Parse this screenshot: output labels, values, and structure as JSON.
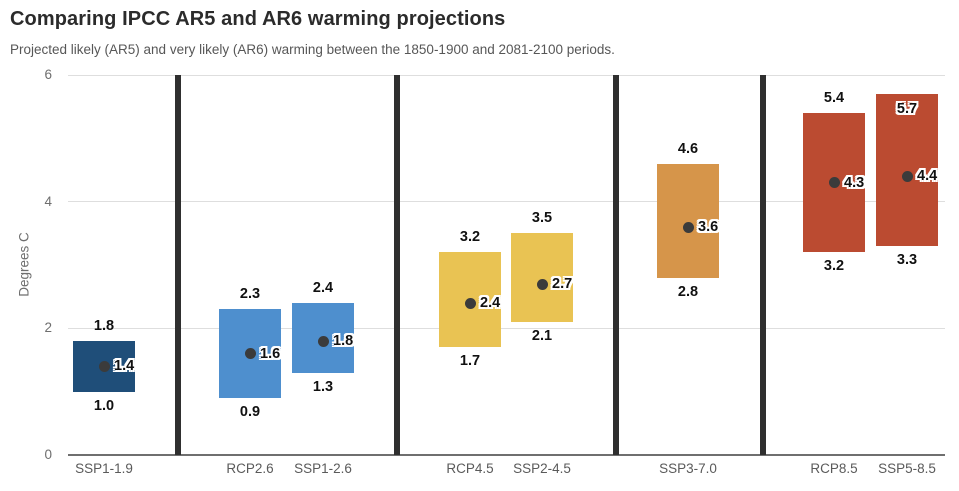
{
  "chart_data": {
    "type": "bar",
    "variant": "floating-range-bars-with-midpoint-dots",
    "title": "Comparing IPCC AR5 and AR6 warming projections",
    "subtitle": "Projected likely (AR5) and very likely (AR6) warming between the 1850-1900 and 2081-2100 periods.",
    "xlabel": "",
    "ylabel": "Degrees C",
    "ylim": [
      0,
      6
    ],
    "yticks": [
      0,
      2,
      4,
      6
    ],
    "grid": true,
    "legend": "none",
    "categories": [
      "SSP1-1.9",
      "RCP2.6",
      "SSP1-2.6",
      "RCP4.5",
      "SSP2-4.5",
      "SSP3-7.0",
      "RCP8.5",
      "SSP5-8.5"
    ],
    "points": [
      {
        "label": "SSP1-1.9",
        "min": 1.0,
        "max": 1.8,
        "mid": 1.4,
        "color": "#1f4e79",
        "group": 0
      },
      {
        "label": "RCP2.6",
        "min": 0.9,
        "max": 2.3,
        "mid": 1.6,
        "color": "#4e8fce",
        "group": 1
      },
      {
        "label": "SSP1-2.6",
        "min": 1.3,
        "max": 2.4,
        "mid": 1.8,
        "color": "#4e8fce",
        "group": 1
      },
      {
        "label": "RCP4.5",
        "min": 1.7,
        "max": 3.2,
        "mid": 2.4,
        "color": "#e9c353",
        "group": 2
      },
      {
        "label": "SSP2-4.5",
        "min": 2.1,
        "max": 3.5,
        "mid": 2.7,
        "color": "#e9c353",
        "group": 2
      },
      {
        "label": "SSP3-7.0",
        "min": 2.8,
        "max": 4.6,
        "mid": 3.6,
        "color": "#d6954a",
        "group": 3
      },
      {
        "label": "RCP8.5",
        "min": 3.2,
        "max": 5.4,
        "mid": 4.3,
        "color": "#bb4b31",
        "group": 4
      },
      {
        "label": "SSP5-8.5",
        "min": 3.3,
        "max": 5.7,
        "mid": 4.4,
        "color": "#bb4b31",
        "group": 4
      }
    ],
    "colors": {
      "dot": "#3b3b3b",
      "divider": "#2f2f2f",
      "gridline": "#dedede",
      "axis_line": "#6f6f6f",
      "dark_blue": "#1f4e79",
      "blue": "#4e8fce",
      "yellow": "#e9c353",
      "orange": "#d6954a",
      "red": "#bb4b31"
    }
  }
}
